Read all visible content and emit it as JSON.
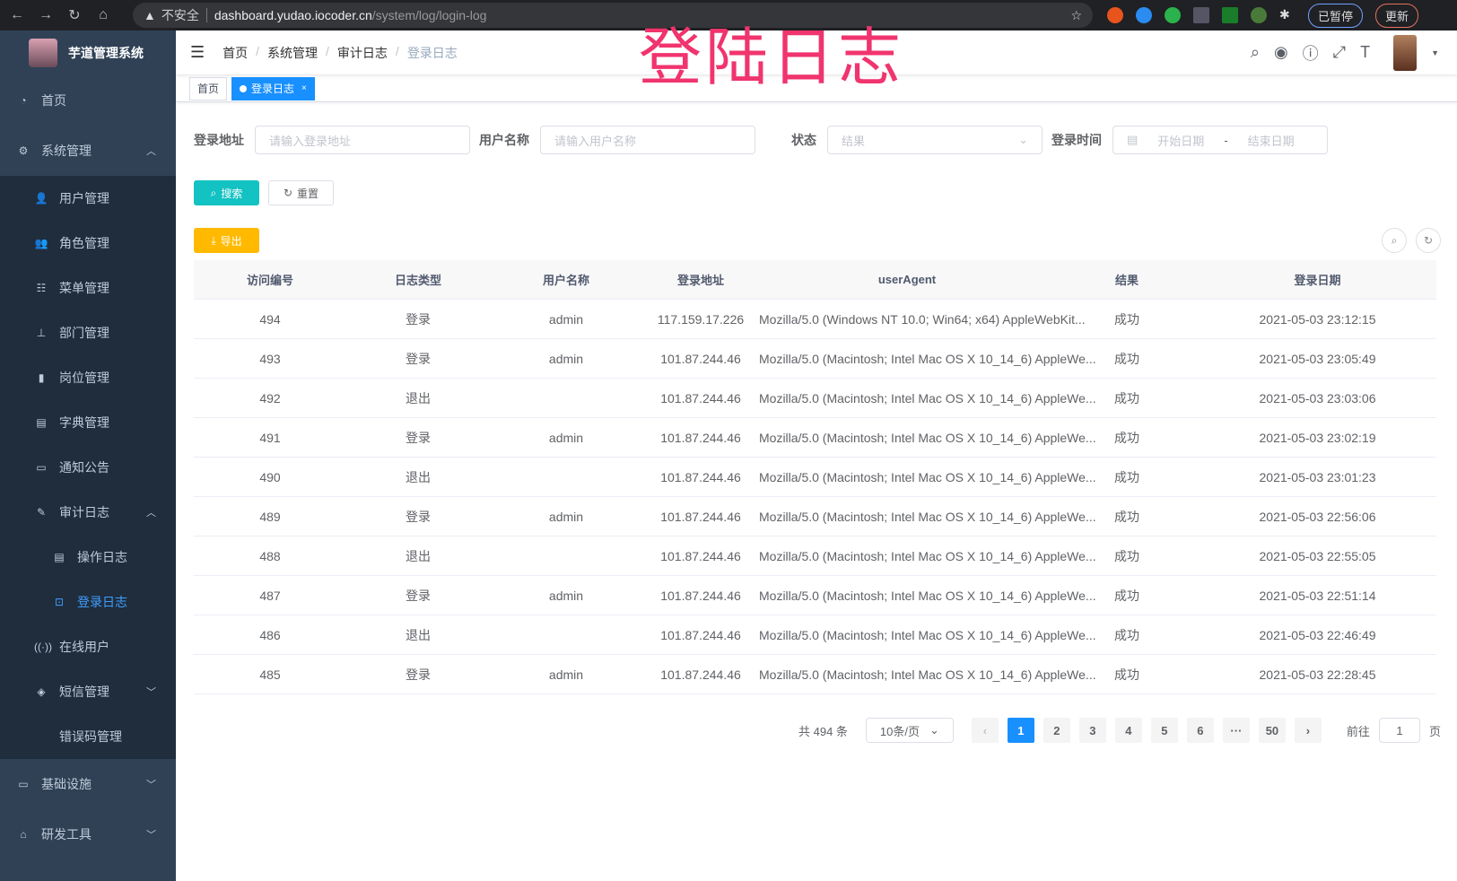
{
  "browser": {
    "security": "不安全",
    "host": "dashboard.yudao.iocoder.cn",
    "path": "/system/log/login-log",
    "paused": "已暂停",
    "update": "更新"
  },
  "overlay_title": "登陆日志",
  "sidebar": {
    "title": "芋道管理系统",
    "items": [
      {
        "label": "首页",
        "icon": "dashboard-icon",
        "level": 0
      },
      {
        "label": "系统管理",
        "icon": "gear-icon",
        "level": 0,
        "chevron": "up"
      },
      {
        "label": "用户管理",
        "icon": "user-icon",
        "level": 1
      },
      {
        "label": "角色管理",
        "icon": "peoples-icon",
        "level": 1
      },
      {
        "label": "菜单管理",
        "icon": "tree-table-icon",
        "level": 1
      },
      {
        "label": "部门管理",
        "icon": "tree-icon",
        "level": 1
      },
      {
        "label": "岗位管理",
        "icon": "post-icon",
        "level": 1
      },
      {
        "label": "字典管理",
        "icon": "dict-icon",
        "level": 1
      },
      {
        "label": "通知公告",
        "icon": "message-icon",
        "level": 1
      },
      {
        "label": "审计日志",
        "icon": "log-icon",
        "level": 1,
        "chevron": "up"
      },
      {
        "label": "操作日志",
        "icon": "form-icon",
        "level": 2
      },
      {
        "label": "登录日志",
        "icon": "logininfor-icon",
        "level": 2,
        "active": true
      },
      {
        "label": "在线用户",
        "icon": "online-icon",
        "level": 1
      },
      {
        "label": "短信管理",
        "icon": "validcode-icon",
        "level": 1,
        "chevron": "down"
      },
      {
        "label": "错误码管理",
        "icon": "code-icon",
        "level": 1
      },
      {
        "label": "基础设施",
        "icon": "monitor-icon",
        "level": 0,
        "chevron": "down"
      },
      {
        "label": "研发工具",
        "icon": "tool-icon",
        "level": 0,
        "chevron": "down"
      }
    ]
  },
  "breadcrumb": [
    "首页",
    "系统管理",
    "审计日志",
    "登录日志"
  ],
  "tags": [
    {
      "label": "首页"
    },
    {
      "label": "登录日志",
      "active": true
    }
  ],
  "search": {
    "login_ip_label": "登录地址",
    "login_ip_placeholder": "请输入登录地址",
    "username_label": "用户名称",
    "username_placeholder": "请输入用户名称",
    "status_label": "状态",
    "status_placeholder": "结果",
    "time_label": "登录时间",
    "start_placeholder": "开始日期",
    "range_sep": "-",
    "end_placeholder": "结束日期",
    "search_btn": "搜索",
    "reset_btn": "重置",
    "export_btn": "导出"
  },
  "table": {
    "columns": [
      "访问编号",
      "日志类型",
      "用户名称",
      "登录地址",
      "userAgent",
      "结果",
      "登录日期"
    ],
    "rows": [
      [
        "494",
        "登录",
        "admin",
        "117.159.17.226",
        "Mozilla/5.0 (Windows NT 10.0; Win64; x64) AppleWebKit...",
        "成功",
        "2021-05-03 23:12:15"
      ],
      [
        "493",
        "登录",
        "admin",
        "101.87.244.46",
        "Mozilla/5.0 (Macintosh; Intel Mac OS X 10_14_6) AppleWe...",
        "成功",
        "2021-05-03 23:05:49"
      ],
      [
        "492",
        "退出",
        "",
        "101.87.244.46",
        "Mozilla/5.0 (Macintosh; Intel Mac OS X 10_14_6) AppleWe...",
        "成功",
        "2021-05-03 23:03:06"
      ],
      [
        "491",
        "登录",
        "admin",
        "101.87.244.46",
        "Mozilla/5.0 (Macintosh; Intel Mac OS X 10_14_6) AppleWe...",
        "成功",
        "2021-05-03 23:02:19"
      ],
      [
        "490",
        "退出",
        "",
        "101.87.244.46",
        "Mozilla/5.0 (Macintosh; Intel Mac OS X 10_14_6) AppleWe...",
        "成功",
        "2021-05-03 23:01:23"
      ],
      [
        "489",
        "登录",
        "admin",
        "101.87.244.46",
        "Mozilla/5.0 (Macintosh; Intel Mac OS X 10_14_6) AppleWe...",
        "成功",
        "2021-05-03 22:56:06"
      ],
      [
        "488",
        "退出",
        "",
        "101.87.244.46",
        "Mozilla/5.0 (Macintosh; Intel Mac OS X 10_14_6) AppleWe...",
        "成功",
        "2021-05-03 22:55:05"
      ],
      [
        "487",
        "登录",
        "admin",
        "101.87.244.46",
        "Mozilla/5.0 (Macintosh; Intel Mac OS X 10_14_6) AppleWe...",
        "成功",
        "2021-05-03 22:51:14"
      ],
      [
        "486",
        "退出",
        "",
        "101.87.244.46",
        "Mozilla/5.0 (Macintosh; Intel Mac OS X 10_14_6) AppleWe...",
        "成功",
        "2021-05-03 22:46:49"
      ],
      [
        "485",
        "登录",
        "admin",
        "101.87.244.46",
        "Mozilla/5.0 (Macintosh; Intel Mac OS X 10_14_6) AppleWe...",
        "成功",
        "2021-05-03 22:28:45"
      ]
    ]
  },
  "pagination": {
    "total": "共 494 条",
    "page_size": "10条/页",
    "pages": [
      "1",
      "2",
      "3",
      "4",
      "5",
      "6",
      "···",
      "50"
    ],
    "current": "1",
    "goto_label": "前往",
    "goto_value": "1",
    "goto_suffix": "页"
  },
  "colors": {
    "sidebar": "#304156",
    "submenu": "#1f2d3d",
    "primary": "#1890ff",
    "search_btn": "#13c2c2",
    "export_btn": "#ffba00",
    "overlay": "#f0346e"
  }
}
